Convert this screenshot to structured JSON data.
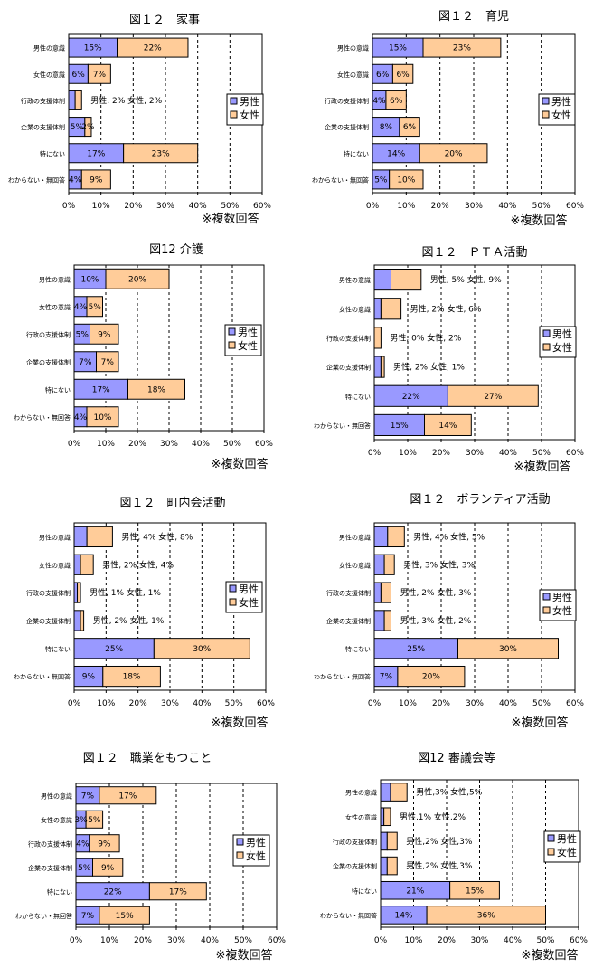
{
  "note": "※複数回答",
  "legend": {
    "male": "男性",
    "female": "女性"
  },
  "colors": {
    "male": "#9999ff",
    "female": "#ffcc99"
  },
  "chart_data": [
    {
      "type": "bar",
      "orientation": "horizontal",
      "stacked": true,
      "title": "図１２　家事",
      "categories": [
        "男性の意識",
        "女性の意識",
        "行政の支援体制",
        "企業の支援体制",
        "特にない",
        "わからない・無回答"
      ],
      "series": [
        {
          "name": "男性",
          "values": [
            15,
            6,
            2,
            5,
            17,
            4
          ],
          "labels": [
            "15%",
            "6%",
            "",
            "5%",
            "17%",
            "4%"
          ]
        },
        {
          "name": "女性",
          "values": [
            22,
            7,
            2,
            2,
            23,
            9
          ],
          "labels": [
            "22%",
            "7%",
            "",
            "2%",
            "23%",
            "9%"
          ]
        }
      ],
      "annotations": [
        {
          "category": "行政の支援体制",
          "text": "男性, 2%  女性, 2%"
        }
      ],
      "xlim": [
        0,
        60
      ],
      "xticks": [
        "0%",
        "10%",
        "20%",
        "30%",
        "40%",
        "50%",
        "60%"
      ],
      "grid": true,
      "legend_position": "right"
    },
    {
      "type": "bar",
      "orientation": "horizontal",
      "stacked": true,
      "title": "図１２　育児",
      "categories": [
        "男性の意識",
        "女性の意識",
        "行政の支援体制",
        "企業の支援体制",
        "特にない",
        "わからない・無回答"
      ],
      "series": [
        {
          "name": "男性",
          "values": [
            15,
            6,
            4,
            8,
            14,
            5
          ],
          "labels": [
            "15%",
            "6%",
            "4%",
            "8%",
            "14%",
            "5%"
          ]
        },
        {
          "name": "女性",
          "values": [
            23,
            6,
            6,
            6,
            20,
            10
          ],
          "labels": [
            "23%",
            "6%",
            "6%",
            "6%",
            "20%",
            "10%"
          ]
        }
      ],
      "annotations": [],
      "xlim": [
        0,
        60
      ],
      "xticks": [
        "0%",
        "10%",
        "20%",
        "30%",
        "40%",
        "50%",
        "60%"
      ],
      "grid": true,
      "legend_position": "right"
    },
    {
      "type": "bar",
      "orientation": "horizontal",
      "stacked": true,
      "title": "図12 介護",
      "categories": [
        "男性の意識",
        "女性の意識",
        "行政の支援体制",
        "企業の支援体制",
        "特にない",
        "わからない・無回答"
      ],
      "series": [
        {
          "name": "男性",
          "values": [
            10,
            4,
            5,
            7,
            17,
            4
          ],
          "labels": [
            "10%",
            "4%",
            "5%",
            "7%",
            "17%",
            "4%"
          ]
        },
        {
          "name": "女性",
          "values": [
            20,
            5,
            9,
            7,
            18,
            10
          ],
          "labels": [
            "20%",
            "5%",
            "9%",
            "7%",
            "18%",
            "10%"
          ]
        }
      ],
      "annotations": [],
      "xlim": [
        0,
        60
      ],
      "xticks": [
        "0%",
        "10%",
        "20%",
        "30%",
        "40%",
        "50%",
        "60%"
      ],
      "grid": true,
      "legend_position": "right"
    },
    {
      "type": "bar",
      "orientation": "horizontal",
      "stacked": true,
      "title": "図１２　ＰＴＡ活動",
      "categories": [
        "男性の意識",
        "女性の意識",
        "行政の支援体制",
        "企業の支援体制",
        "特にない",
        "わからない・無回答"
      ],
      "series": [
        {
          "name": "男性",
          "values": [
            5,
            2,
            0,
            2,
            22,
            15
          ],
          "labels": [
            "",
            "",
            "",
            "",
            "22%",
            "15%"
          ]
        },
        {
          "name": "女性",
          "values": [
            9,
            6,
            2,
            1,
            27,
            14
          ],
          "labels": [
            "",
            "",
            "",
            "",
            "27%",
            "14%"
          ]
        }
      ],
      "annotations": [
        {
          "category": "男性の意識",
          "text": "男性, 5%  女性, 9%"
        },
        {
          "category": "女性の意識",
          "text": "男性, 2%  女性, 6%"
        },
        {
          "category": "行政の支援体制",
          "text": "男性, 0%  女性, 2%"
        },
        {
          "category": "企業の支援体制",
          "text": "男性, 2%  女性, 1%"
        }
      ],
      "xlim": [
        0,
        60
      ],
      "xticks": [
        "0%",
        "10%",
        "20%",
        "30%",
        "40%",
        "50%",
        "60%"
      ],
      "grid": true,
      "legend_position": "right"
    },
    {
      "type": "bar",
      "orientation": "horizontal",
      "stacked": true,
      "title": "図１２　町内会活動",
      "categories": [
        "男性の意識",
        "女性の意識",
        "行政の支援体制",
        "企業の支援体制",
        "特にない",
        "わからない・無回答"
      ],
      "series": [
        {
          "name": "男性",
          "values": [
            4,
            2,
            1,
            2,
            25,
            9
          ],
          "labels": [
            "",
            "",
            "",
            "",
            "25%",
            "9%"
          ]
        },
        {
          "name": "女性",
          "values": [
            8,
            4,
            1,
            1,
            30,
            18
          ],
          "labels": [
            "",
            "",
            "",
            "",
            "30%",
            "18%"
          ]
        }
      ],
      "annotations": [
        {
          "category": "男性の意識",
          "text": "男性, 4%  女性, 8%"
        },
        {
          "category": "女性の意識",
          "text": "男性, 2%  女性, 4%"
        },
        {
          "category": "行政の支援体制",
          "text": "男性, 1%  女性, 1%"
        },
        {
          "category": "企業の支援体制",
          "text": "男性, 2%  女性, 1%"
        }
      ],
      "xlim": [
        0,
        60
      ],
      "xticks": [
        "0%",
        "10%",
        "20%",
        "30%",
        "40%",
        "50%",
        "60%"
      ],
      "grid": true,
      "legend_position": "right"
    },
    {
      "type": "bar",
      "orientation": "horizontal",
      "stacked": true,
      "title": "図１２　ボランティア活動",
      "categories": [
        "男性の意識",
        "女性の意識",
        "行政の支援体制",
        "企業の支援体制",
        "特にない",
        "わからない・無回答"
      ],
      "series": [
        {
          "name": "男性",
          "values": [
            4,
            3,
            2,
            3,
            25,
            7
          ],
          "labels": [
            "",
            "",
            "",
            "",
            "25%",
            "7%"
          ]
        },
        {
          "name": "女性",
          "values": [
            5,
            3,
            3,
            2,
            30,
            20
          ],
          "labels": [
            "",
            "",
            "",
            "",
            "30%",
            "20%"
          ]
        }
      ],
      "annotations": [
        {
          "category": "男性の意識",
          "text": "男性, 4% 女性, 5%"
        },
        {
          "category": "女性の意識",
          "text": "男性, 3% 女性, 3%"
        },
        {
          "category": "行政の支援体制",
          "text": "男性, 2% 女性, 3%"
        },
        {
          "category": "企業の支援体制",
          "text": "男性, 3% 女性, 2%"
        }
      ],
      "xlim": [
        0,
        60
      ],
      "xticks": [
        "0%",
        "10%",
        "20%",
        "30%",
        "40%",
        "50%",
        "60%"
      ],
      "grid": true,
      "legend_position": "right"
    },
    {
      "type": "bar",
      "orientation": "horizontal",
      "stacked": true,
      "title": "図１２　職業をもつこと",
      "categories": [
        "男性の意識",
        "女性の意識",
        "行政の支援体制",
        "企業の支援体制",
        "特にない",
        "わからない・無回答"
      ],
      "series": [
        {
          "name": "男性",
          "values": [
            7,
            3,
            4,
            5,
            22,
            7
          ],
          "labels": [
            "7%",
            "3%",
            "4%",
            "5%",
            "22%",
            "7%"
          ]
        },
        {
          "name": "女性",
          "values": [
            17,
            5,
            9,
            9,
            17,
            15
          ],
          "labels": [
            "17%",
            "5%",
            "9%",
            "9%",
            "17%",
            "15%"
          ]
        }
      ],
      "annotations": [],
      "xlim": [
        0,
        60
      ],
      "xticks": [
        "0%",
        "10%",
        "20%",
        "30%",
        "40%",
        "50%",
        "60%"
      ],
      "grid": true,
      "legend_position": "right"
    },
    {
      "type": "bar",
      "orientation": "horizontal",
      "stacked": true,
      "title": "図12 審議会等",
      "categories": [
        "男性の意識",
        "女性の意識",
        "行政の支援体制",
        "企業の支援体制",
        "特にない",
        "わからない・無回答"
      ],
      "series": [
        {
          "name": "男性",
          "values": [
            3,
            1,
            2,
            2,
            21,
            14
          ],
          "labels": [
            "",
            "",
            "",
            "",
            "21%",
            "14%"
          ]
        },
        {
          "name": "女性",
          "values": [
            5,
            2,
            3,
            3,
            15,
            36
          ],
          "labels": [
            "",
            "",
            "",
            "",
            "15%",
            "36%"
          ]
        }
      ],
      "annotations": [
        {
          "category": "男性の意識",
          "text": "男性,3% 女性,5%"
        },
        {
          "category": "女性の意識",
          "text": "男性,1% 女性,2%"
        },
        {
          "category": "行政の支援体制",
          "text": "男性,2% 女性,3%"
        },
        {
          "category": "企業の支援体制",
          "text": "男性,2% 女性,3%"
        }
      ],
      "xlim": [
        0,
        60
      ],
      "xticks": [
        "0%",
        "10%",
        "20%",
        "30%",
        "40%",
        "50%",
        "60%"
      ],
      "grid": true,
      "legend_position": "right"
    }
  ]
}
